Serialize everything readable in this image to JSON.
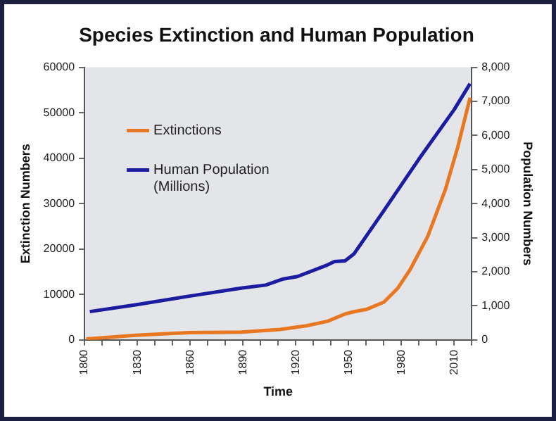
{
  "chart_data": {
    "type": "line",
    "title": "Species Extinction and Human Population",
    "xlabel": "Time",
    "ylabel": "Extinction Numbers",
    "y2label": "Population Numbers",
    "xlim": [
      1800,
      2020
    ],
    "xticks": [
      1800,
      {
        "value": 1810,
        "label": null
      },
      {
        "value": 1820,
        "label": null
      },
      1830,
      {
        "value": 1840,
        "label": null
      },
      {
        "value": 1850,
        "label": null
      },
      1860,
      {
        "value": 1870,
        "label": null
      },
      {
        "value": 1880,
        "label": null
      },
      1890,
      {
        "value": 1900,
        "label": null
      },
      {
        "value": 1910,
        "label": null
      },
      1920,
      {
        "value": 1930,
        "label": null
      },
      {
        "value": 1940,
        "label": null
      },
      1950,
      {
        "value": 1960,
        "label": null
      },
      {
        "value": 1970,
        "label": null
      },
      1980,
      {
        "value": 1990,
        "label": null
      },
      {
        "value": 2000,
        "label": null
      },
      2010,
      {
        "value": 2020,
        "label": null
      }
    ],
    "ylim": [
      0,
      60000
    ],
    "yticks": [
      0,
      10000,
      20000,
      30000,
      40000,
      50000,
      60000
    ],
    "y2lim": [
      0,
      8000
    ],
    "y2ticks": [
      0,
      {
        "value": 1000,
        "label": "1,000"
      },
      {
        "value": 2000,
        "label": "2,000"
      },
      {
        "value": 3000,
        "label": "3,000"
      },
      {
        "value": 4000,
        "label": "4,000"
      },
      {
        "value": 5000,
        "label": "5,000"
      },
      {
        "value": 6000,
        "label": "6,000"
      },
      {
        "value": 7000,
        "label": "7,000"
      },
      {
        "value": 8000,
        "label": "8,000"
      }
    ],
    "legend": "top left",
    "marker": "none",
    "series": [
      {
        "name": "Extinctions",
        "color": "#e87722",
        "x": [
          1801,
          1829,
          1859,
          1889,
          1911,
          1926,
          1938,
          1948,
          1953,
          1960,
          1970,
          1978,
          1985,
          1995,
          2005,
          2012,
          2019
        ],
        "values": [
          200,
          1000,
          1600,
          1700,
          2300,
          3100,
          4100,
          5700,
          6200,
          6700,
          8300,
          11400,
          15500,
          22800,
          33100,
          42400,
          53300
        ]
      },
      {
        "name": "Human Population (Millions)",
        "color": "#1c1ca0",
        "axis": "y2",
        "x": [
          1803,
          1829,
          1859,
          1889,
          1903,
          1913,
          1921,
          1938,
          1942,
          1948,
          1953,
          1970,
          1990,
          2010,
          2019
        ],
        "values": [
          830,
          1030,
          1280,
          1520,
          1610,
          1790,
          1860,
          2200,
          2300,
          2320,
          2520,
          3790,
          5310,
          6760,
          7520
        ]
      }
    ]
  }
}
